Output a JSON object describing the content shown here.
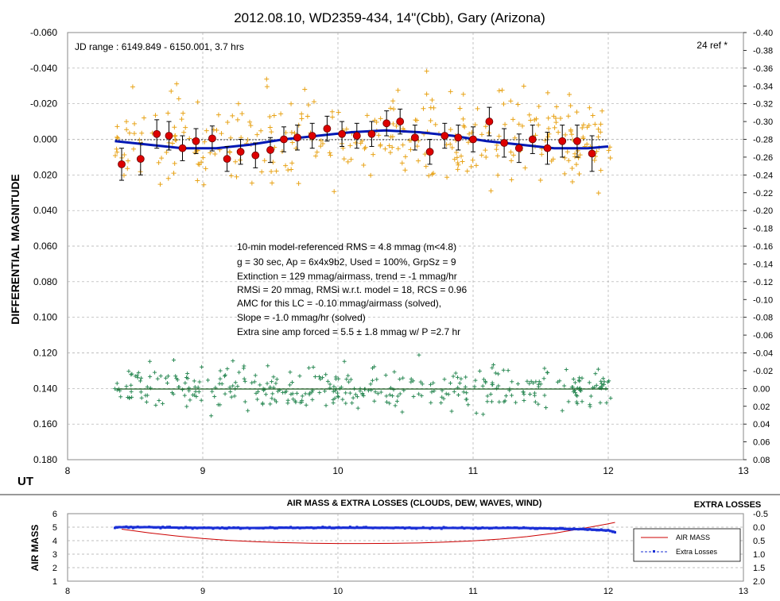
{
  "main_chart": {
    "title": "2012.08.10, WD2359-434, 14\"(Cbb), Gary (Arizona)",
    "jd_range": "JD range  : 6149.849  - 6150.001,  3.7 hrs",
    "ref_count": "24 ref *",
    "ylabel": "DIFFERENTIAL MAGNITUDE",
    "xlabel": "UT",
    "x_ticks": [
      "8",
      "9",
      "10",
      "11",
      "12",
      "13"
    ],
    "y_left_ticks": [
      "-0.060",
      "-0.040",
      "-0.020",
      "0.000",
      "0.020",
      "0.040",
      "0.060",
      "0.080",
      "0.100",
      "0.120",
      "0.140",
      "0.160",
      "0.180"
    ],
    "y_right_ticks": [
      "-0.40",
      "-0.38",
      "-0.36",
      "-0.34",
      "-0.32",
      "-0.30",
      "-0.28",
      "-0.26",
      "-0.24",
      "-0.22",
      "-0.20",
      "-0.18",
      "-0.16",
      "-0.14",
      "-0.12",
      "-0.10",
      "-0.08",
      "-0.06",
      "-0.04",
      "-0.02",
      "0.00",
      "0.02",
      "0.04",
      "0.06",
      "0.08"
    ],
    "stats": [
      "10-min model-referenced RMS = 4.8 mmag (m<4.8)",
      "g = 30 sec, Ap = 6x4x9b2, Used = 100%, GrpSz = 9",
      "Extinction = 129  mmag/airmass, trend = -1 mmag/hr",
      "RMSi = 20 mmag, RMSi w.r.t. model = 18,  RCS = 0.96",
      "AMC for this LC = -0.10 mmag/airmass (solved),",
      "Slope = -1.0 mmag/hr (solved)",
      "Extra sine amp forced = 5.5 ± 1.8 mmag w/ P =2.7 hr"
    ]
  },
  "sub_chart": {
    "title": "AIR MASS & EXTRA LOSSES  (CLOUDS,  DEW, WAVES, WIND)",
    "right_title": "EXTRA LOSSES",
    "ylabel": "AIR MASS",
    "x_ticks": [
      "8",
      "9",
      "10",
      "11",
      "12",
      "13"
    ],
    "y_left_ticks": [
      "6",
      "5",
      "4",
      "3",
      "2",
      "1"
    ],
    "y_right_ticks": [
      "-0.5",
      "0.0",
      "0.5",
      "1.0",
      "1.5",
      "2.0"
    ],
    "legend": [
      "AIR MASS",
      "Extra Losses"
    ]
  },
  "colors": {
    "target": "#e8a317",
    "check": "#2e8b57",
    "binned": "#dd0000",
    "model": "#0018b4",
    "airmass": "#cc0000",
    "losses": "#1a2fd6"
  },
  "chart_data": [
    {
      "type": "scatter",
      "title": "2012.08.10, WD2359-434, 14\"(Cbb), Gary (Arizona)",
      "xlabel": "UT",
      "ylabel": "DIFFERENTIAL MAGNITUDE",
      "xlim": [
        8,
        13
      ],
      "ylim": [
        -0.06,
        0.18
      ],
      "y_inverted": true,
      "y2lim": [
        -0.4,
        0.08
      ],
      "grid": true,
      "series": [
        {
          "marker": "error-bar circle",
          "x": [
            8.4,
            8.54,
            8.66,
            8.75,
            8.85,
            8.95,
            9.07,
            9.18,
            9.28,
            9.39,
            9.5,
            9.6,
            9.7,
            9.81,
            9.92,
            10.03,
            10.14,
            10.25,
            10.36,
            10.46,
            10.57,
            10.68,
            10.79,
            10.89,
            11.0,
            11.12,
            11.23,
            11.34,
            11.44,
            11.55,
            11.66,
            11.77,
            11.88
          ],
          "y": [
            0.014,
            0.011,
            -0.003,
            -0.002,
            0.005,
            0.001,
            -0.0005,
            0.011,
            0.007,
            0.009,
            0.006,
            0.0,
            -0.001,
            -0.002,
            -0.006,
            -0.003,
            -0.002,
            -0.003,
            -0.009,
            -0.01,
            -0.001,
            0.007,
            -0.002,
            -0.001,
            0.0,
            -0.01,
            0.002,
            0.005,
            0.0,
            0.005,
            0.001,
            0.001,
            0.008
          ],
          "error": [
            0.009,
            0.009,
            0.008,
            0.008,
            0.007,
            0.007,
            0.007,
            0.007,
            0.007,
            0.007,
            0.007,
            0.007,
            0.007,
            0.007,
            0.007,
            0.007,
            0.007,
            0.007,
            0.007,
            0.007,
            0.007,
            0.007,
            0.007,
            0.007,
            0.007,
            0.008,
            0.008,
            0.008,
            0.008,
            0.009,
            0.009,
            0.009,
            0.01
          ]
        },
        {
          "style": "line",
          "x": [
            8.35,
            8.6,
            8.85,
            9.1,
            9.35,
            9.6,
            9.85,
            10.1,
            10.35,
            10.6,
            10.85,
            11.1,
            11.35,
            11.6,
            11.85,
            12.0
          ],
          "y": [
            0.001,
            0.003,
            0.005,
            0.005,
            0.003,
            0.0,
            -0.002,
            -0.004,
            -0.005,
            -0.004,
            -0.002,
            0.001,
            0.003,
            0.005,
            0.005,
            0.004
          ]
        }
      ]
    },
    {
      "type": "line",
      "title": "AIR MASS & EXTRA LOSSES  (CLOUDS,  DEW, WAVES, WIND)",
      "ylabel": "AIR MASS",
      "xlim": [
        8,
        13
      ],
      "ylim": [
        1,
        6
      ],
      "y2lim": [
        -0.5,
        2.0
      ],
      "legend_position": "right",
      "series": [
        {
          "name": "AIR MASS",
          "x": [
            8.4,
            8.6,
            8.8,
            9.0,
            9.2,
            9.4,
            9.6,
            9.8,
            10.0,
            10.2,
            10.4,
            10.6,
            10.8,
            11.0,
            11.2,
            11.4,
            11.6,
            11.8,
            12.0,
            12.05
          ],
          "y": [
            4.85,
            4.58,
            4.35,
            4.16,
            4.02,
            3.92,
            3.85,
            3.81,
            3.79,
            3.79,
            3.8,
            3.83,
            3.9,
            3.99,
            4.12,
            4.3,
            4.55,
            4.88,
            5.25,
            5.35
          ]
        },
        {
          "name": "Extra Losses",
          "x": [
            8.35,
            8.6,
            8.85,
            9.1,
            9.35,
            9.6,
            9.85,
            10.1,
            10.35,
            10.6,
            10.85,
            11.1,
            11.35,
            11.6,
            11.85,
            12.0,
            12.05
          ],
          "y": [
            0.0,
            0.0,
            0.02,
            0.03,
            0.03,
            0.02,
            0.02,
            0.02,
            0.02,
            0.03,
            0.03,
            0.03,
            0.03,
            0.05,
            0.08,
            0.12,
            0.18
          ]
        }
      ]
    }
  ]
}
